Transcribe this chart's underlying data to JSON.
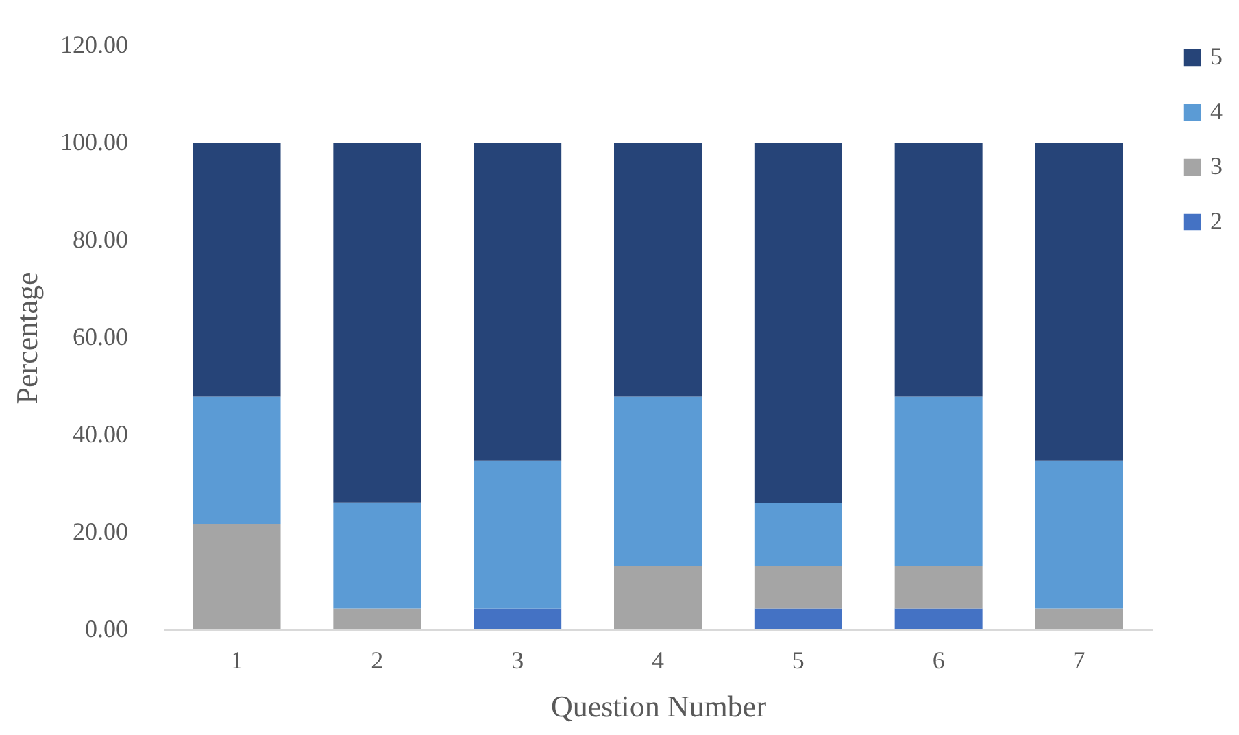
{
  "chart_data": {
    "type": "bar",
    "stacked": true,
    "xlabel": "Question Number",
    "ylabel": "Percentage",
    "categories": [
      "1",
      "2",
      "3",
      "4",
      "5",
      "6",
      "7"
    ],
    "series": [
      {
        "name": "2",
        "color": "#4472c4",
        "values": [
          0,
          0,
          4.3,
          0,
          4.3,
          4.3,
          0
        ]
      },
      {
        "name": "3",
        "color": "#a5a5a5",
        "values": [
          21.7,
          4.3,
          0,
          13,
          8.7,
          8.7,
          4.3
        ]
      },
      {
        "name": "4",
        "color": "#5b9bd5",
        "values": [
          26.1,
          21.8,
          30.4,
          34.8,
          13,
          34.8,
          30.4
        ]
      },
      {
        "name": "5",
        "color": "#264478",
        "values": [
          52.2,
          73.9,
          65.3,
          52.2,
          74,
          52.2,
          65.3
        ]
      }
    ],
    "ylim": [
      0,
      120
    ],
    "yticks": [
      {
        "value": 0,
        "label": "0.00"
      },
      {
        "value": 20,
        "label": "20.00"
      },
      {
        "value": 40,
        "label": "40.00"
      },
      {
        "value": 60,
        "label": "60.00"
      },
      {
        "value": 80,
        "label": "80.00"
      },
      {
        "value": 100,
        "label": "100.00"
      },
      {
        "value": 120,
        "label": "120.00"
      }
    ],
    "grid": false,
    "legend": "right"
  }
}
